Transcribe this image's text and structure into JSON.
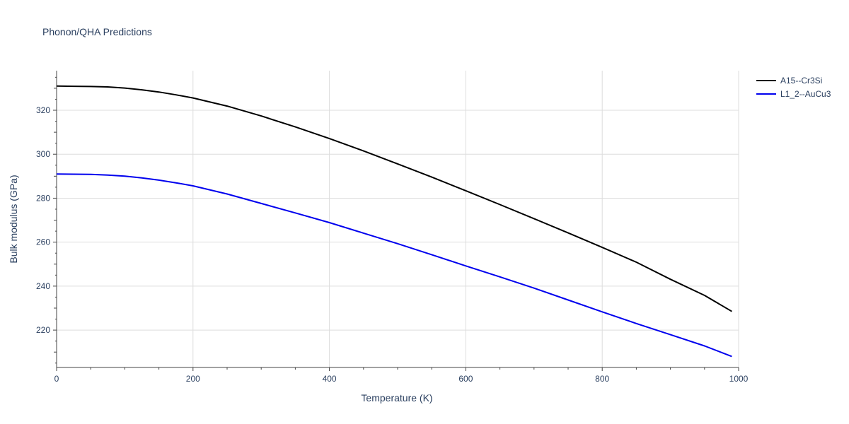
{
  "chart_data": {
    "type": "line",
    "title": "Phonon/QHA Predictions",
    "xlabel": "Temperature (K)",
    "ylabel": "Bulk modulus (GPa)",
    "xlim": [
      0,
      1000
    ],
    "ylim": [
      203,
      338
    ],
    "x_ticks": [
      0,
      200,
      400,
      600,
      800,
      1000
    ],
    "y_ticks": [
      220,
      240,
      260,
      280,
      300,
      320
    ],
    "grid": true,
    "legend_position": "top-right",
    "series": [
      {
        "name": "A15--Cr3Si",
        "color": "#000000",
        "x": [
          0,
          25,
          50,
          75,
          100,
          125,
          150,
          175,
          200,
          250,
          300,
          350,
          400,
          450,
          500,
          550,
          600,
          650,
          700,
          750,
          800,
          850,
          900,
          950,
          990
        ],
        "y": [
          331,
          330.9,
          330.8,
          330.6,
          330.1,
          329.3,
          328.3,
          327,
          325.6,
          321.9,
          317.4,
          312.4,
          307.1,
          301.5,
          295.6,
          289.6,
          283.4,
          277.1,
          270.7,
          264.2,
          257.6,
          250.9,
          243.1,
          235.8,
          228.5
        ]
      },
      {
        "name": "L1_2--AuCu3",
        "color": "#0000ee",
        "x": [
          0,
          25,
          50,
          75,
          100,
          125,
          150,
          175,
          200,
          250,
          300,
          350,
          400,
          450,
          500,
          550,
          600,
          650,
          700,
          750,
          800,
          850,
          900,
          950,
          990
        ],
        "y": [
          291,
          290.9,
          290.8,
          290.5,
          290,
          289.2,
          288.2,
          287,
          285.6,
          281.9,
          277.6,
          273.3,
          268.9,
          264.1,
          259.3,
          254.3,
          249.2,
          244.2,
          239.1,
          233.7,
          228.3,
          223,
          217.9,
          212.8,
          208
        ]
      }
    ]
  }
}
